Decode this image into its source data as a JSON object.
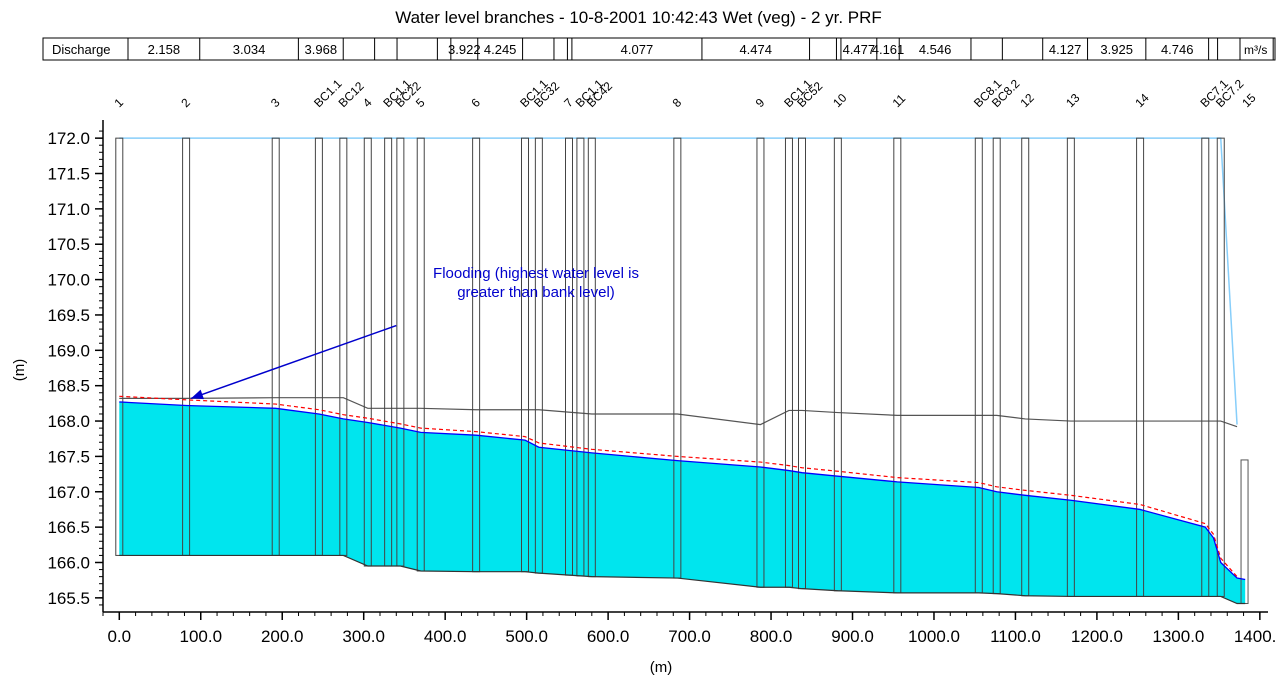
{
  "chart_data": {
    "type": "area",
    "title": "Water level branches - 10-8-2001  10:42:43 Wet (veg) - 2 yr. PRF",
    "xlabel": "(m)",
    "ylabel": "(m)",
    "xlim": [
      -20,
      1410
    ],
    "ylim": [
      165.3,
      172.2
    ],
    "x_ticks": [
      0,
      100,
      200,
      300,
      400,
      500,
      600,
      700,
      800,
      900,
      1000,
      1100,
      1200,
      1300,
      1400
    ],
    "x_tick_labels": [
      "0.0",
      "100.0",
      "200.0",
      "300.0",
      "400.0",
      "500.0",
      "600.0",
      "700.0",
      "800.0",
      "900.0",
      "1000.0",
      "1100.0",
      "1200.0",
      "1300.0",
      "1400.0"
    ],
    "y_ticks": [
      165.5,
      166.0,
      166.5,
      167.0,
      167.5,
      168.0,
      168.5,
      169.0,
      169.5,
      170.0,
      170.5,
      171.0,
      171.5,
      172.0
    ],
    "y_tick_labels": [
      "165.5",
      "166.0",
      "166.5",
      "167.0",
      "167.5",
      "168.0",
      "168.5",
      "169.0",
      "169.5",
      "170.0",
      "170.5",
      "171.0",
      "171.5",
      "172.0"
    ],
    "discharge_label": "Discharge",
    "discharge_unit": "m³/s",
    "discharge_cells": [
      "2.158",
      "3.034",
      "3.968",
      "",
      "",
      "",
      "",
      "3.922",
      "4.245",
      "",
      "",
      "",
      "4.077",
      "4.474",
      "",
      "",
      "4.477",
      "4.161",
      "4.546",
      "",
      "",
      "4.127",
      "3.925",
      "4.746",
      "",
      "",
      ""
    ],
    "discharge_cell_x": [
      0,
      80,
      190,
      240,
      275,
      300,
      345,
      360,
      390,
      440,
      475,
      490,
      495,
      640,
      760,
      790,
      795,
      835,
      860,
      940,
      975,
      1020,
      1070,
      1135,
      1205,
      1215,
      1240,
      1277
    ],
    "sections": [
      {
        "label": "1",
        "x": 0
      },
      {
        "label": "2",
        "x": 82
      },
      {
        "label": "3",
        "x": 192
      },
      {
        "label": "BC1.1",
        "x": 245
      },
      {
        "label": "BC12",
        "x": 275
      },
      {
        "label": "4",
        "x": 305
      },
      {
        "label": "BC1.1",
        "x": 330
      },
      {
        "label": "BC22",
        "x": 345
      },
      {
        "label": "5",
        "x": 370
      },
      {
        "label": "6",
        "x": 438
      },
      {
        "label": "BC1.1",
        "x": 498
      },
      {
        "label": "BC32",
        "x": 515
      },
      {
        "label": "7",
        "x": 552
      },
      {
        "label": "BC1.1",
        "x": 566
      },
      {
        "label": "BC42",
        "x": 580
      },
      {
        "label": "8",
        "x": 685
      },
      {
        "label": "9",
        "x": 787
      },
      {
        "label": "BC1.1",
        "x": 822
      },
      {
        "label": "BC52",
        "x": 838
      },
      {
        "label": "10",
        "x": 882
      },
      {
        "label": "11",
        "x": 955
      },
      {
        "label": "BC8.1",
        "x": 1055
      },
      {
        "label": "BC8.2",
        "x": 1077
      },
      {
        "label": "12",
        "x": 1112
      },
      {
        "label": "13",
        "x": 1168
      },
      {
        "label": "14",
        "x": 1253
      },
      {
        "label": "BC7.1",
        "x": 1333
      },
      {
        "label": "BC7.2",
        "x": 1352
      },
      {
        "label": "15",
        "x": 1372
      }
    ],
    "series": [
      {
        "name": "",
        "role": "water-level",
        "color": "#0000ff",
        "x": [
          0,
          82,
          192,
          245,
          275,
          305,
          345,
          370,
          438,
          498,
          515,
          580,
          685,
          787,
          822,
          838,
          882,
          955,
          1055,
          1077,
          1112,
          1168,
          1253,
          1333,
          1343,
          1352,
          1372,
          1382
        ],
        "y": [
          168.27,
          168.22,
          168.18,
          168.1,
          168.03,
          167.98,
          167.9,
          167.84,
          167.8,
          167.73,
          167.63,
          167.55,
          167.44,
          167.35,
          167.3,
          167.27,
          167.22,
          167.14,
          167.06,
          167.0,
          166.95,
          166.88,
          166.75,
          166.5,
          166.35,
          166.0,
          165.78,
          165.76
        ]
      },
      {
        "name": "",
        "role": "energy-line",
        "color": "#ff0000",
        "x": [
          0,
          82,
          192,
          245,
          275,
          305,
          345,
          370,
          438,
          498,
          515,
          580,
          685,
          787,
          822,
          838,
          882,
          955,
          1055,
          1077,
          1112,
          1168,
          1253,
          1333,
          1343,
          1352,
          1372
        ],
        "y": [
          168.35,
          168.3,
          168.24,
          168.16,
          168.09,
          168.04,
          167.96,
          167.9,
          167.85,
          167.78,
          167.69,
          167.6,
          167.5,
          167.42,
          167.37,
          167.34,
          167.29,
          167.2,
          167.13,
          167.07,
          167.02,
          166.95,
          166.82,
          166.55,
          166.4,
          166.06,
          165.8
        ]
      },
      {
        "name": "",
        "role": "bed",
        "color": "#333333",
        "x": [
          0,
          82,
          192,
          245,
          275,
          305,
          345,
          370,
          438,
          498,
          515,
          580,
          685,
          787,
          822,
          838,
          882,
          955,
          1055,
          1077,
          1112,
          1168,
          1253,
          1333,
          1352,
          1372,
          1382
        ],
        "y": [
          166.1,
          166.1,
          166.1,
          166.1,
          166.1,
          165.95,
          165.95,
          165.88,
          165.87,
          165.87,
          165.85,
          165.8,
          165.78,
          165.65,
          165.65,
          165.63,
          165.6,
          165.57,
          165.57,
          165.56,
          165.53,
          165.52,
          165.52,
          165.52,
          165.52,
          165.42,
          165.42
        ]
      },
      {
        "name": "",
        "role": "bank-level",
        "color": "#555555",
        "x": [
          0,
          82,
          192,
          245,
          275,
          305,
          345,
          370,
          438,
          498,
          515,
          580,
          685,
          787,
          822,
          838,
          882,
          955,
          1055,
          1077,
          1112,
          1168,
          1253,
          1333,
          1352,
          1372
        ],
        "y": [
          168.32,
          168.32,
          168.33,
          168.33,
          168.33,
          168.18,
          168.18,
          168.18,
          168.16,
          168.16,
          168.16,
          168.1,
          168.1,
          167.95,
          168.15,
          168.15,
          168.12,
          168.08,
          168.08,
          168.08,
          168.03,
          168.0,
          168.0,
          168.0,
          168.0,
          167.92
        ]
      },
      {
        "name": "",
        "role": "max-level",
        "color": "#87cefa",
        "x": [
          0,
          1352,
          1372
        ],
        "y": [
          172.0,
          172.0,
          167.95
        ]
      }
    ],
    "annotation": {
      "text_line1": "Flooding (highest water level is",
      "text_line2": "greater than bank level)",
      "color": "#0000cc",
      "arrow_from": [
        340,
        169.35
      ],
      "arrow_to": [
        88,
        168.32
      ]
    },
    "water_fill_color": "#00e5ee",
    "grid": false
  }
}
